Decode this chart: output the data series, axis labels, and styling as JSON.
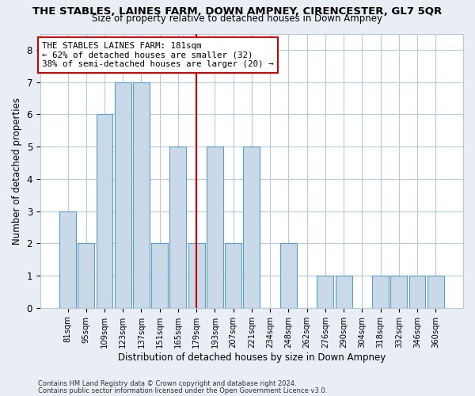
{
  "title": "THE STABLES, LAINES FARM, DOWN AMPNEY, CIRENCESTER, GL7 5QR",
  "subtitle": "Size of property relative to detached houses in Down Ampney",
  "xlabel": "Distribution of detached houses by size in Down Ampney",
  "ylabel": "Number of detached properties",
  "categories": [
    "81sqm",
    "95sqm",
    "109sqm",
    "123sqm",
    "137sqm",
    "151sqm",
    "165sqm",
    "179sqm",
    "193sqm",
    "207sqm",
    "221sqm",
    "234sqm",
    "248sqm",
    "262sqm",
    "276sqm",
    "290sqm",
    "304sqm",
    "318sqm",
    "332sqm",
    "346sqm",
    "360sqm"
  ],
  "values": [
    3,
    2,
    6,
    7,
    7,
    2,
    5,
    2,
    5,
    2,
    5,
    0,
    2,
    0,
    1,
    1,
    0,
    1,
    1,
    1,
    1
  ],
  "bar_color": "#c9d9e8",
  "bar_edge_color": "#5a9fc8",
  "highlight_index": 7,
  "highlight_line_color": "#cc0000",
  "annotation_text": "THE STABLES LAINES FARM: 181sqm\n← 62% of detached houses are smaller (32)\n38% of semi-detached houses are larger (20) →",
  "annotation_box_color": "#ffffff",
  "annotation_box_edge_color": "#cc0000",
  "ylim": [
    0,
    8.5
  ],
  "yticks": [
    0,
    1,
    2,
    3,
    4,
    5,
    6,
    7,
    8
  ],
  "footer_line1": "Contains HM Land Registry data © Crown copyright and database right 2024.",
  "footer_line2": "Contains public sector information licensed under the Open Government Licence v3.0.",
  "background_color": "#e8eef4",
  "plot_bg_color": "#ffffff",
  "grid_color": "#b8cad8"
}
